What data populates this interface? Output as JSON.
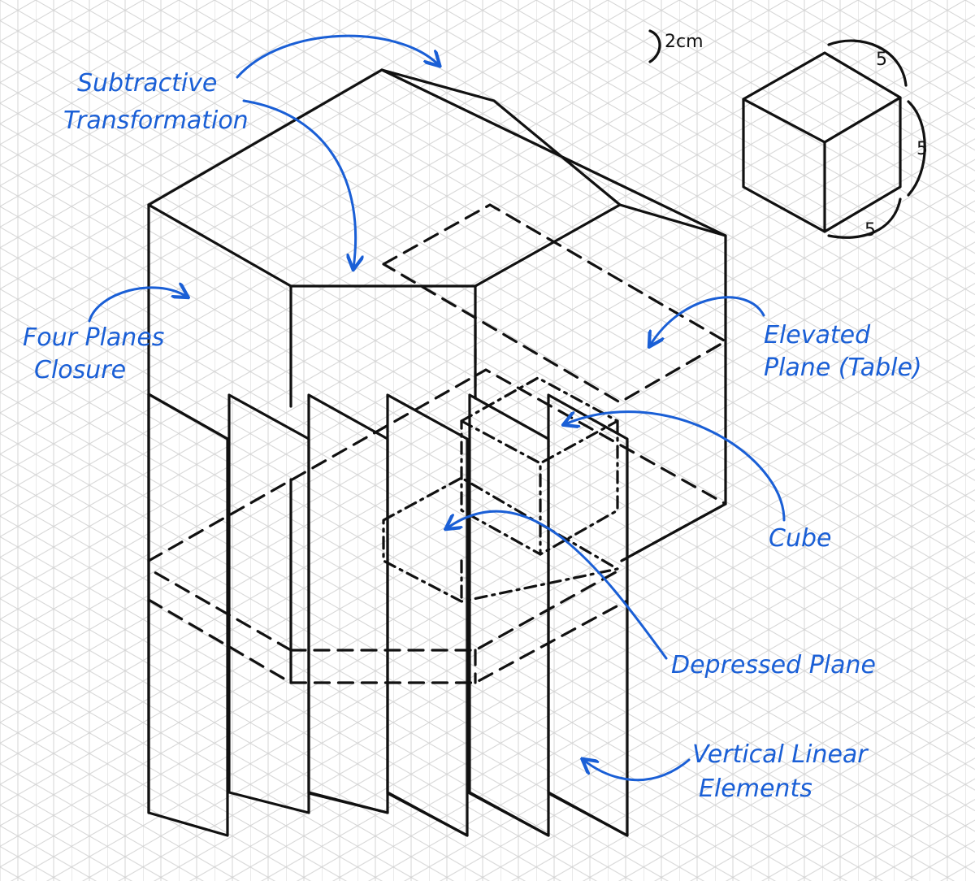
{
  "scale_note": "2cm",
  "key_cube": {
    "edge_top": "5",
    "edge_right": "5",
    "edge_bottom": "5"
  },
  "labels": {
    "subtractive_line1": "Subtractive",
    "subtractive_line2": "Transformation",
    "four_planes_line1": "Four Planes",
    "four_planes_line2": "Closure",
    "elevated_line1": "Elevated",
    "elevated_line2": "Plane (Table)",
    "cube": "Cube",
    "depressed": "Depressed Plane",
    "vertical_line1": "Vertical Linear",
    "vertical_line2": "Elements"
  },
  "colors": {
    "ink": "#111111",
    "annotation": "#1a5fd6",
    "grid": "#d4d4d4"
  }
}
